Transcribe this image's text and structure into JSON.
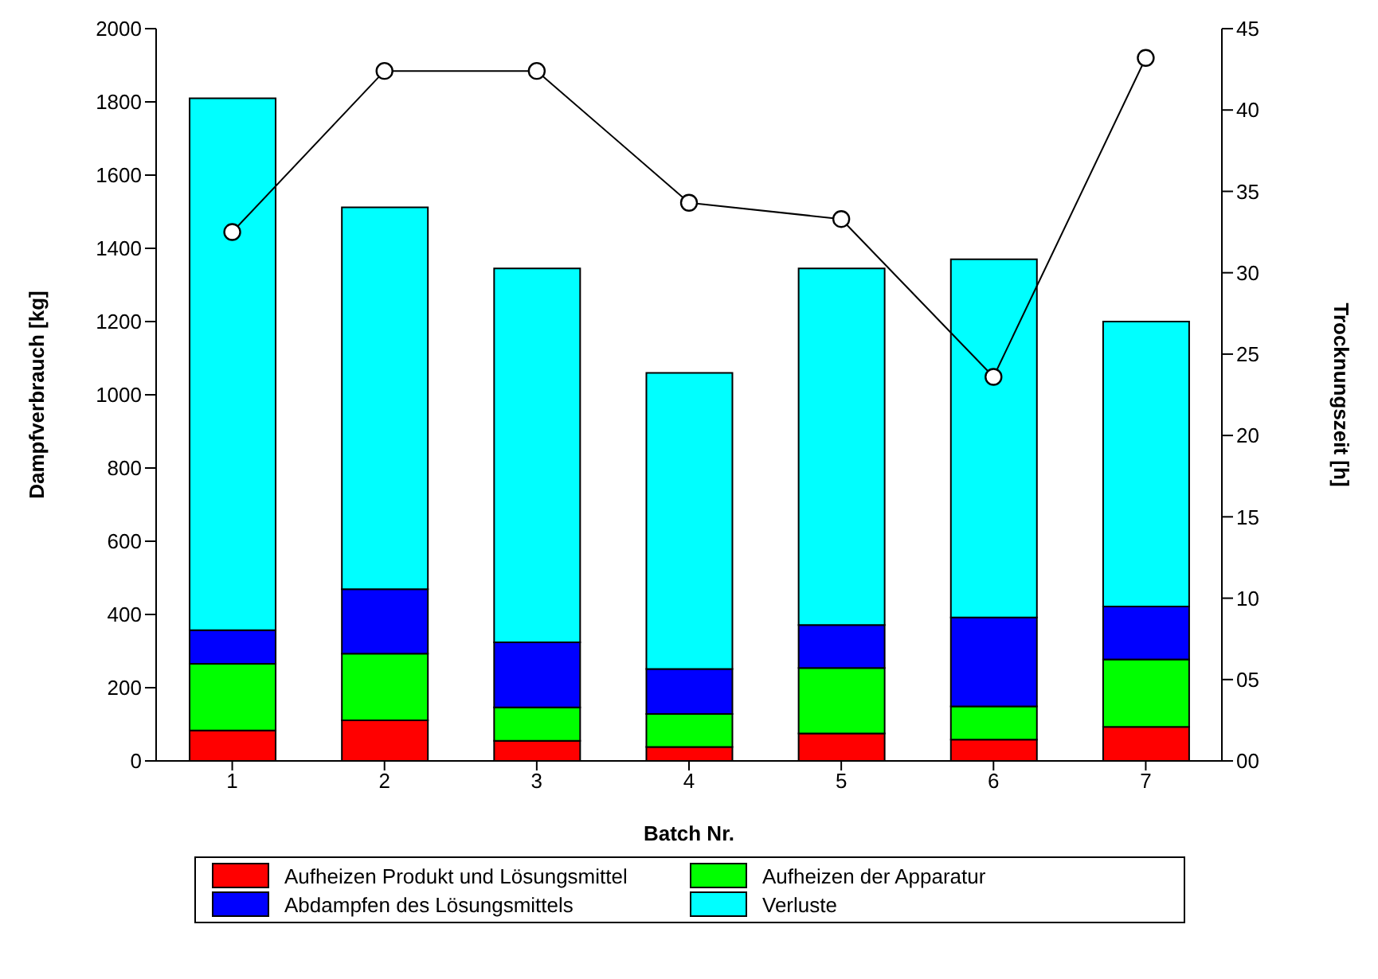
{
  "chart_data": {
    "type": "bar",
    "xlabel": "Batch Nr.",
    "ylabel": "Dampfverbrauch [kg]",
    "y2label": "Trocknungszeit [h]",
    "categories": [
      "1",
      "2",
      "3",
      "4",
      "5",
      "6",
      "7"
    ],
    "stacked": true,
    "series": [
      {
        "name": "Aufheizen Produkt und Lösungsmittel",
        "color": "#ff0000",
        "values": [
          83,
          111,
          55,
          38,
          75,
          58,
          93
        ]
      },
      {
        "name": "Aufheizen der Apparatur",
        "color": "#00ff00",
        "values": [
          182,
          182,
          91,
          90,
          179,
          91,
          184
        ]
      },
      {
        "name": "Abdampfen des Lösungsmittels",
        "color": "#0000ff",
        "values": [
          92,
          176,
          178,
          123,
          117,
          243,
          145
        ]
      },
      {
        "name": "Verluste",
        "color": "#00ffff",
        "values": [
          1453,
          1043,
          1021,
          809,
          974,
          978,
          778
        ]
      },
      {
        "type": "line",
        "axis": "y2",
        "color": "#000000",
        "marker": "circle",
        "values": [
          32.5,
          42.4,
          42.4,
          34.3,
          33.3,
          23.6,
          43.2
        ]
      }
    ],
    "ylim": [
      0,
      2000
    ],
    "yticks": [
      0,
      200,
      400,
      600,
      800,
      1000,
      1200,
      1400,
      1600,
      1800,
      2000
    ],
    "y2lim": [
      0,
      45
    ],
    "y2ticks": [
      {
        "value": 0,
        "label": "00"
      },
      {
        "value": 5,
        "label": "05"
      },
      10,
      15,
      20,
      25,
      30,
      35,
      40,
      45
    ],
    "legend": "bottom",
    "grid": false
  }
}
